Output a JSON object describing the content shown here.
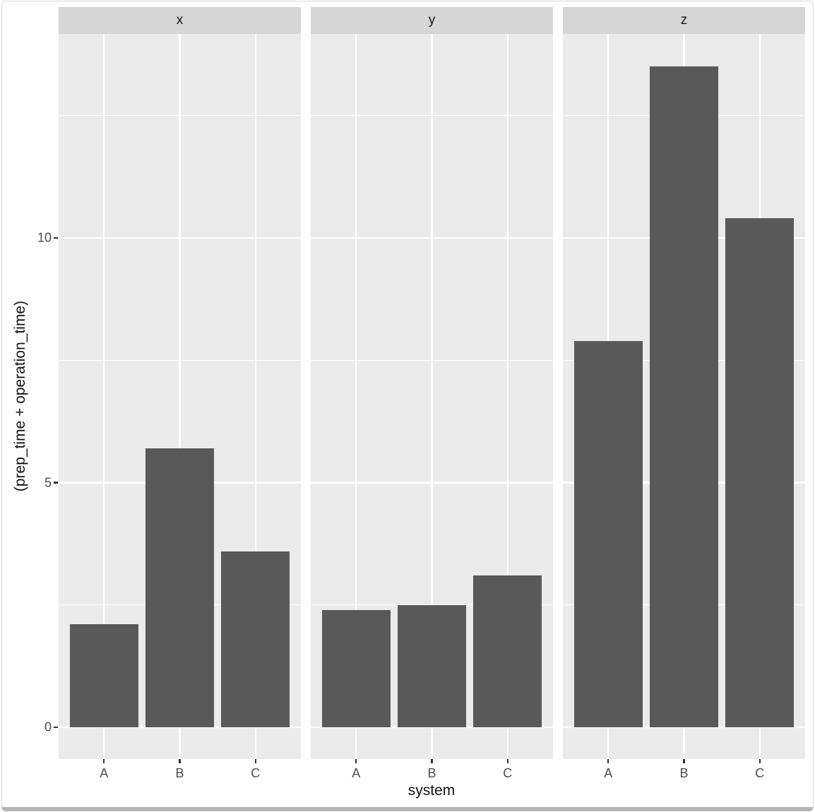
{
  "chart_data": {
    "type": "bar",
    "title": "",
    "xlabel": "system",
    "ylabel": "(prep_time + operation_time)",
    "categories": [
      "A",
      "B",
      "C"
    ],
    "facets": [
      {
        "label": "x",
        "values": [
          2.1,
          5.7,
          3.6
        ]
      },
      {
        "label": "y",
        "values": [
          2.4,
          2.5,
          3.1
        ]
      },
      {
        "label": "z",
        "values": [
          7.9,
          13.5,
          10.4
        ]
      }
    ],
    "y_ticks": [
      0,
      5,
      10
    ],
    "y_minor_ticks": [
      2.5,
      7.5,
      12.5
    ],
    "ylim": [
      -0.67,
      14.17
    ],
    "grid": "major-and-minor, white on gray panel",
    "legend": "none",
    "colors": {
      "bar_fill": "#595959",
      "panel_background": "#ebebeb",
      "strip_background": "#d6d6d6",
      "gridline": "#ffffff",
      "tick_label": "#4d4d4d",
      "axis_title": "#111111",
      "tick_mark": "#333333",
      "page_background": "#ffffff"
    }
  }
}
